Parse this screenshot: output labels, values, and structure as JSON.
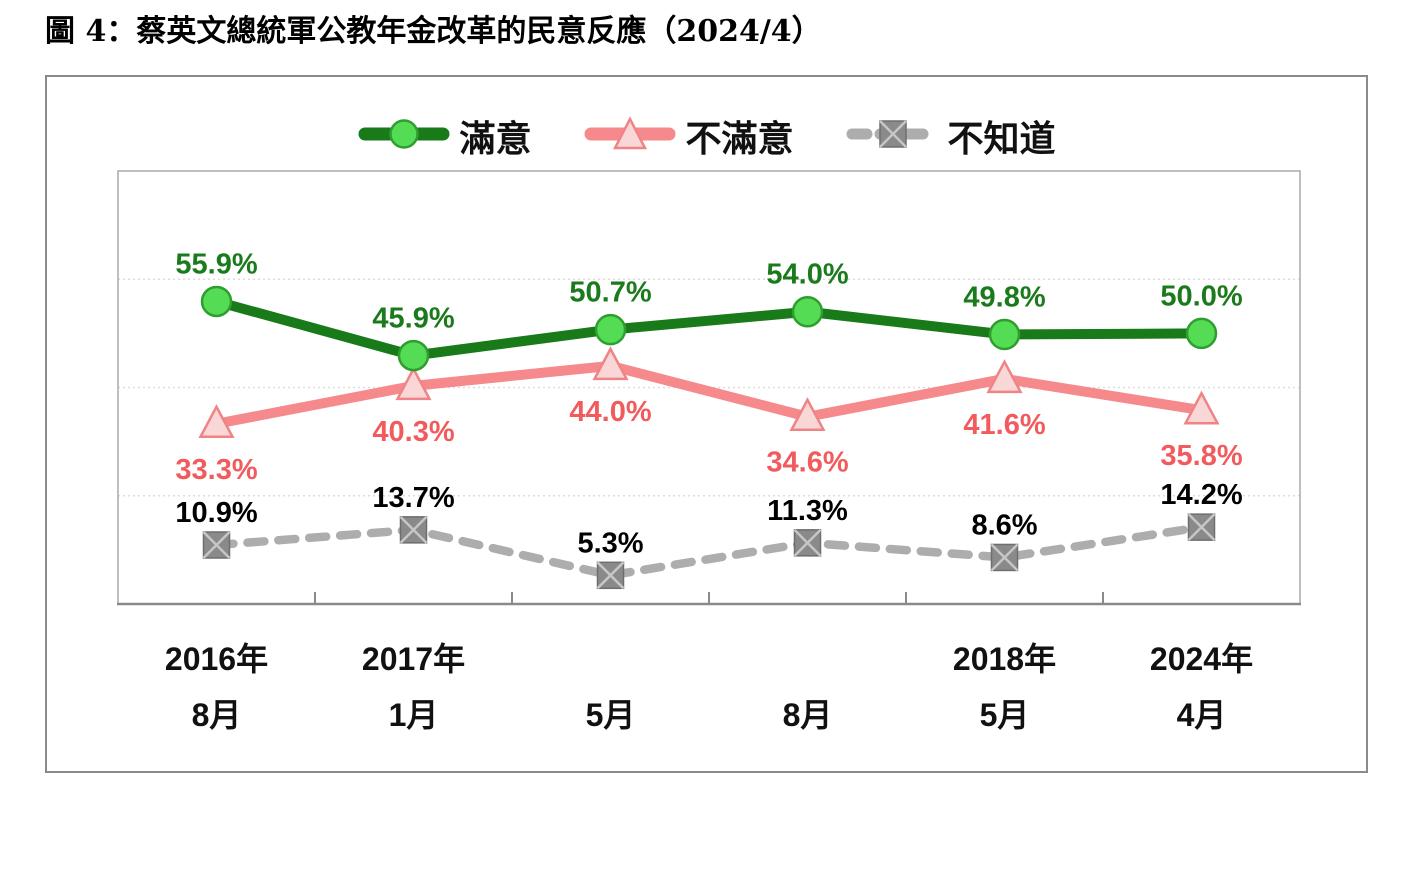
{
  "title": "圖 4：蔡英文總統軍公教年金改革的民意反應（2024/4）",
  "legend": {
    "items": [
      {
        "label": "滿意",
        "marker": "circle"
      },
      {
        "label": "不滿意",
        "marker": "triangle"
      },
      {
        "label": "不知道",
        "marker": "square-x"
      }
    ]
  },
  "chart_data": {
    "type": "line",
    "title": "蔡英文總統軍公教年金改革的民意反應（2024/4）",
    "categories": [
      {
        "year": "2016年",
        "month": "8月"
      },
      {
        "year": "2017年",
        "month": "1月"
      },
      {
        "year": "",
        "month": "5月"
      },
      {
        "year": "",
        "month": "8月"
      },
      {
        "year": "2018年",
        "month": "5月"
      },
      {
        "year": "2024年",
        "month": "4月"
      }
    ],
    "series": [
      {
        "name": "滿意",
        "values": [
          55.9,
          45.9,
          50.7,
          54.0,
          49.8,
          50.0
        ],
        "labels": [
          "55.9%",
          "45.9%",
          "50.7%",
          "54.0%",
          "49.8%",
          "50.0%"
        ],
        "marker": "circle",
        "line_style": "solid",
        "line_color": "#187a18",
        "marker_fill": "#55dc55",
        "marker_stroke": "#2f9e2f",
        "label_color": "#1b7a1b",
        "label_offset": -38
      },
      {
        "name": "不滿意",
        "values": [
          33.3,
          40.3,
          44.0,
          34.6,
          41.6,
          35.8
        ],
        "labels": [
          "33.3%",
          "40.3%",
          "44.0%",
          "34.6%",
          "41.6%",
          "35.8%"
        ],
        "marker": "triangle",
        "line_style": "solid",
        "line_color": "#f5898b",
        "marker_fill": "#fad7d7",
        "marker_stroke": "#ef8486",
        "label_color": "#f15b5d",
        "label_offset": 45
      },
      {
        "name": "不知道",
        "values": [
          10.9,
          13.7,
          5.3,
          11.3,
          8.6,
          14.2
        ],
        "labels": [
          "10.9%",
          "13.7%",
          "5.3%",
          "11.3%",
          "8.6%",
          "14.2%"
        ],
        "marker": "square-x",
        "line_style": "dashed",
        "line_color": "#adadad",
        "marker_fill": "#8a8a8a",
        "marker_stroke": "#6e6e6e",
        "label_color": "#000000",
        "label_offset": -33
      }
    ],
    "ylim": [
      0,
      80
    ],
    "gridlines": [
      20,
      40,
      60
    ],
    "grid": true,
    "legend_position": "top",
    "xlabel": "",
    "ylabel": ""
  },
  "colors": {
    "frame_border": "#8a8a8a",
    "plot_border": "#aaaaaa",
    "axis_line": "#8a8a8a",
    "gridline": "#dcdcdc",
    "tick": "#8a8a8a",
    "axis_label": "#111111"
  }
}
